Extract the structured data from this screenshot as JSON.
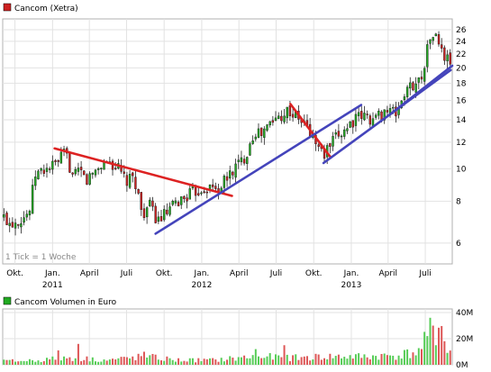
{
  "chart_data": [
    {
      "type": "candlestick",
      "title": "Cancom (Xetra)",
      "legend_color": "#cc2222",
      "up_color": "#22aa22",
      "down_color": "#cc2222",
      "wick_color": "#222222",
      "log_scale": true,
      "ylim": [
        5.2,
        28
      ],
      "yticks": [
        6,
        8,
        10,
        12,
        14,
        16,
        18,
        20,
        22,
        24,
        26
      ],
      "note": "1 Tick = 1 Woche",
      "xticks": [
        {
          "label": "Okt.",
          "year": "",
          "date": "2010-10-01"
        },
        {
          "label": "Jan.",
          "year": "2011",
          "date": "2011-01-01"
        },
        {
          "label": "April",
          "year": "",
          "date": "2011-04-01"
        },
        {
          "label": "Juli",
          "year": "",
          "date": "2011-07-01"
        },
        {
          "label": "Okt.",
          "year": "",
          "date": "2011-10-01"
        },
        {
          "label": "Jan.",
          "year": "2012",
          "date": "2012-01-01"
        },
        {
          "label": "April",
          "year": "",
          "date": "2012-04-01"
        },
        {
          "label": "Juli",
          "year": "",
          "date": "2012-07-01"
        },
        {
          "label": "Okt.",
          "year": "",
          "date": "2012-10-01"
        },
        {
          "label": "Jan.",
          "year": "2013",
          "date": "2013-01-01"
        },
        {
          "label": "April",
          "year": "",
          "date": "2013-04-01"
        },
        {
          "label": "Juli",
          "year": "",
          "date": "2013-07-01"
        }
      ],
      "xlim": [
        "2010-09-01",
        "2013-09-05"
      ],
      "price_path": [
        [
          "2010-09-01",
          7.2
        ],
        [
          "2010-09-20",
          6.9
        ],
        [
          "2010-10-15",
          7.1
        ],
        [
          "2010-11-05",
          7.4
        ],
        [
          "2010-11-20",
          9.6
        ],
        [
          "2010-12-10",
          9.9
        ],
        [
          "2011-01-10",
          10.3
        ],
        [
          "2011-02-01",
          11.2
        ],
        [
          "2011-02-20",
          9.4
        ],
        [
          "2011-03-10",
          9.8
        ],
        [
          "2011-03-25",
          9.2
        ],
        [
          "2011-04-20",
          10.0
        ],
        [
          "2011-05-15",
          10.6
        ],
        [
          "2011-06-10",
          10.0
        ],
        [
          "2011-07-01",
          9.1
        ],
        [
          "2011-07-20",
          9.4
        ],
        [
          "2011-08-08",
          7.3
        ],
        [
          "2011-08-25",
          7.8
        ],
        [
          "2011-09-15",
          7.0
        ],
        [
          "2011-10-10",
          7.4
        ],
        [
          "2011-11-01",
          7.9
        ],
        [
          "2011-12-01",
          8.4
        ],
        [
          "2012-01-10",
          8.8
        ],
        [
          "2012-02-10",
          8.7
        ],
        [
          "2012-03-01",
          9.3
        ],
        [
          "2012-03-20",
          10.0
        ],
        [
          "2012-04-15",
          10.8
        ],
        [
          "2012-05-10",
          13.0
        ],
        [
          "2012-05-25",
          12.6
        ],
        [
          "2012-06-15",
          13.6
        ],
        [
          "2012-07-10",
          14.4
        ],
        [
          "2012-07-30",
          15.0
        ],
        [
          "2012-08-20",
          14.2
        ],
        [
          "2012-09-10",
          13.6
        ],
        [
          "2012-09-25",
          12.6
        ],
        [
          "2012-10-10",
          11.8
        ],
        [
          "2012-10-25",
          10.9
        ],
        [
          "2012-11-10",
          11.7
        ],
        [
          "2012-12-01",
          12.6
        ],
        [
          "2013-01-05",
          13.9
        ],
        [
          "2013-01-30",
          14.4
        ],
        [
          "2013-02-25",
          14.0
        ],
        [
          "2013-03-25",
          15.0
        ],
        [
          "2013-04-20",
          14.6
        ],
        [
          "2013-05-10",
          16.6
        ],
        [
          "2013-05-30",
          17.8
        ],
        [
          "2013-06-20",
          18.4
        ],
        [
          "2013-07-05",
          22.5
        ],
        [
          "2013-07-18",
          25.5
        ],
        [
          "2013-08-01",
          24.0
        ],
        [
          "2013-08-15",
          21.5
        ],
        [
          "2013-09-01",
          21.0
        ]
      ],
      "trendlines": [
        {
          "color": "#dd2222",
          "from": [
            "2011-01-06",
            11.5
          ],
          "to": [
            "2012-03-15",
            8.3
          ]
        },
        {
          "color": "#dd2222",
          "from": [
            "2012-08-05",
            15.6
          ],
          "to": [
            "2012-11-12",
            10.8
          ]
        },
        {
          "color": "#4444bb",
          "from": [
            "2011-09-10",
            6.4
          ],
          "to": [
            "2013-01-25",
            15.5
          ]
        },
        {
          "color": "#4444bb",
          "from": [
            "2012-10-25",
            10.4
          ],
          "to": [
            "2013-09-01",
            19.7
          ]
        },
        {
          "color": "#4444bb",
          "from": [
            "2013-04-05",
            14.5
          ],
          "to": [
            "2013-09-05",
            20.3
          ]
        }
      ]
    },
    {
      "type": "bar",
      "title": "Cancom Volumen in Euro",
      "legend_color": "#22aa22",
      "up_color": "#55cc55",
      "down_color": "#dd5555",
      "ylim": [
        0,
        40
      ],
      "yticks": [
        {
          "value": 0,
          "label": "0M"
        },
        {
          "value": 20,
          "label": "20M"
        },
        {
          "value": 40,
          "label": "40M"
        }
      ],
      "volume_path": [
        [
          "2010-09-01",
          3
        ],
        [
          "2010-12-01",
          4
        ],
        [
          "2011-02-10",
          6
        ],
        [
          "2011-05-15",
          4
        ],
        [
          "2011-08-15",
          7
        ],
        [
          "2011-11-01",
          4
        ],
        [
          "2012-02-01",
          4
        ],
        [
          "2012-05-10",
          7
        ],
        [
          "2012-08-15",
          6
        ],
        [
          "2012-11-01",
          7
        ],
        [
          "2013-02-01",
          7
        ],
        [
          "2013-04-20",
          8
        ],
        [
          "2013-06-15",
          11
        ],
        [
          "2013-07-05",
          22
        ],
        [
          "2013-07-20",
          34
        ],
        [
          "2013-08-05",
          26
        ],
        [
          "2013-09-01",
          12
        ]
      ],
      "spikes": [
        {
          "date": "2011-01-14",
          "value": 11,
          "up": false
        },
        {
          "date": "2011-03-04",
          "value": 16,
          "up": false
        },
        {
          "date": "2011-08-12",
          "value": 10,
          "up": false
        },
        {
          "date": "2012-05-11",
          "value": 12,
          "up": true
        },
        {
          "date": "2012-07-20",
          "value": 15,
          "up": false
        },
        {
          "date": "2013-07-05",
          "value": 22,
          "up": true
        },
        {
          "date": "2013-07-12",
          "value": 36,
          "up": true
        },
        {
          "date": "2013-07-19",
          "value": 30,
          "up": false
        },
        {
          "date": "2013-07-26",
          "value": 15,
          "up": true
        }
      ]
    }
  ]
}
